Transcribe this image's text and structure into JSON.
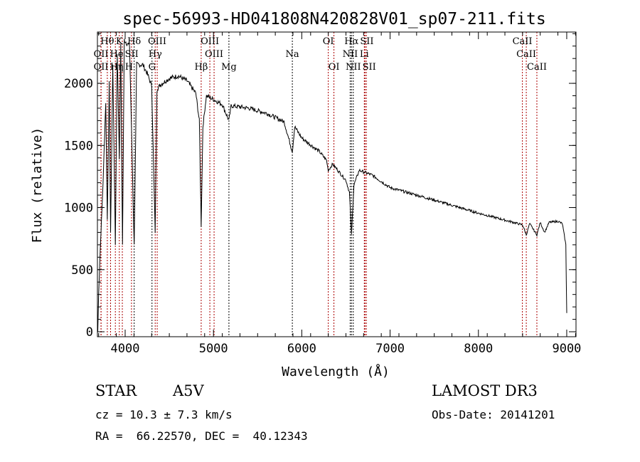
{
  "chart_data": {
    "type": "line",
    "title": "spec-56993-HD041808N420828V01_sp07-211.fits",
    "xlabel": "Wavelength (Å)",
    "ylabel": "Flux (relative)",
    "xlim": [
      3686,
      9105
    ],
    "ylim": [
      -40,
      2413
    ],
    "xticks": [
      4000,
      5000,
      6000,
      7000,
      8000,
      9000
    ],
    "yticks": [
      0,
      500,
      1000,
      1500,
      2000
    ],
    "grid": false,
    "series": [
      {
        "name": "spectrum",
        "points": [
          [
            3690,
            0
          ],
          [
            3700,
            300
          ],
          [
            3720,
            700
          ],
          [
            3750,
            1200
          ],
          [
            3780,
            1850
          ],
          [
            3798,
            900
          ],
          [
            3820,
            2000
          ],
          [
            3835,
            800
          ],
          [
            3860,
            2150
          ],
          [
            3889,
            700
          ],
          [
            3910,
            2250
          ],
          [
            3934,
            1400
          ],
          [
            3950,
            2300
          ],
          [
            3970,
            700
          ],
          [
            3990,
            2350
          ],
          [
            4050,
            2300
          ],
          [
            4102,
            700
          ],
          [
            4130,
            2150
          ],
          [
            4200,
            2150
          ],
          [
            4250,
            2080
          ],
          [
            4300,
            1980
          ],
          [
            4340,
            800
          ],
          [
            4360,
            1950
          ],
          [
            4400,
            1990
          ],
          [
            4500,
            2040
          ],
          [
            4600,
            2060
          ],
          [
            4700,
            2020
          ],
          [
            4800,
            1920
          ],
          [
            4840,
            1700
          ],
          [
            4861,
            850
          ],
          [
            4880,
            1650
          ],
          [
            4920,
            1900
          ],
          [
            5000,
            1870
          ],
          [
            5100,
            1830
          ],
          [
            5175,
            1700
          ],
          [
            5200,
            1820
          ],
          [
            5400,
            1800
          ],
          [
            5600,
            1760
          ],
          [
            5800,
            1690
          ],
          [
            5893,
            1450
          ],
          [
            5920,
            1650
          ],
          [
            6000,
            1560
          ],
          [
            6200,
            1450
          ],
          [
            6280,
            1380
          ],
          [
            6300,
            1300
          ],
          [
            6350,
            1350
          ],
          [
            6500,
            1220
          ],
          [
            6540,
            1120
          ],
          [
            6563,
            780
          ],
          [
            6590,
            1180
          ],
          [
            6650,
            1300
          ],
          [
            6800,
            1260
          ],
          [
            7000,
            1160
          ],
          [
            7500,
            1060
          ],
          [
            8000,
            955
          ],
          [
            8400,
            880
          ],
          [
            8500,
            860
          ],
          [
            8542,
            780
          ],
          [
            8580,
            870
          ],
          [
            8662,
            780
          ],
          [
            8700,
            880
          ],
          [
            8750,
            800
          ],
          [
            8800,
            880
          ],
          [
            8900,
            890
          ],
          [
            8950,
            870
          ],
          [
            8990,
            700
          ],
          [
            9000,
            150
          ]
        ]
      }
    ],
    "line_markers": [
      {
        "label": "Hθ",
        "wave": 3798,
        "row": 0,
        "color": "#aa0000"
      },
      {
        "label": "K",
        "wave": 3934,
        "row": 0,
        "color": "#aa0000"
      },
      {
        "label": "Hδ",
        "wave": 4102,
        "row": 0,
        "color": "#000000"
      },
      {
        "label": "OIII",
        "wave": 4363,
        "row": 0,
        "color": "#aa0000"
      },
      {
        "label": "OII",
        "wave": 3727,
        "row": 1,
        "color": "#aa0000"
      },
      {
        "label": "He",
        "wave": 3889,
        "row": 1,
        "color": "#aa0000"
      },
      {
        "label": "SII",
        "wave": 4072,
        "row": 1,
        "color": "#aa0000"
      },
      {
        "label": "Hγ",
        "wave": 4340,
        "row": 1,
        "color": "#aa0000"
      },
      {
        "label": "OIII",
        "wave": 4959,
        "row": 0,
        "color": "#aa0000"
      },
      {
        "label": "OIII",
        "wave": 5007,
        "row": 1,
        "color": "#aa0000"
      },
      {
        "label": "OII",
        "wave": 3727,
        "row": 2,
        "color": "#aa0000"
      },
      {
        "label": "Hη",
        "wave": 3835,
        "row": 2,
        "color": "#aa0000"
      },
      {
        "label": "H",
        "wave": 3968,
        "row": 2,
        "color": "#aa0000"
      },
      {
        "label": "G",
        "wave": 4304,
        "row": 2,
        "color": "#000000"
      },
      {
        "label": "Hβ",
        "wave": 4861,
        "row": 2,
        "color": "#aa0000"
      },
      {
        "label": "Mg",
        "wave": 5175,
        "row": 2,
        "color": "#000000"
      },
      {
        "label": "Na",
        "wave": 5893,
        "row": 1,
        "color": "#000000"
      },
      {
        "label": "OI",
        "wave": 6300,
        "row": 0,
        "color": "#aa0000"
      },
      {
        "label": "OI",
        "wave": 6364,
        "row": 2,
        "color": "#aa0000"
      },
      {
        "label": "Hα",
        "wave": 6563,
        "row": 0,
        "color": "#000000"
      },
      {
        "label": "NII",
        "wave": 6548,
        "row": 1,
        "color": "#000000"
      },
      {
        "label": "NII",
        "wave": 6583,
        "row": 2,
        "color": "#000000"
      },
      {
        "label": "SII",
        "wave": 6716,
        "row": 0,
        "color": "#aa0000"
      },
      {
        "label": "Li",
        "wave": 6708,
        "row": 1,
        "color": "#aa0000"
      },
      {
        "label": "SII",
        "wave": 6731,
        "row": 2,
        "color": "#aa0000"
      },
      {
        "label": "CaII",
        "wave": 8498,
        "row": 0,
        "color": "#aa0000"
      },
      {
        "label": "CaII",
        "wave": 8542,
        "row": 1,
        "color": "#aa0000"
      },
      {
        "label": "CaII",
        "wave": 8662,
        "row": 2,
        "color": "#aa0000"
      }
    ]
  },
  "info": {
    "class": "STAR",
    "subclass": "A5V",
    "survey": "LAMOST DR3",
    "cz": "cz = 10.3 ± 7.3 km/s",
    "obs_date": "Obs-Date: 20141201",
    "radec": "RA =  66.22570, DEC =  40.12343"
  }
}
